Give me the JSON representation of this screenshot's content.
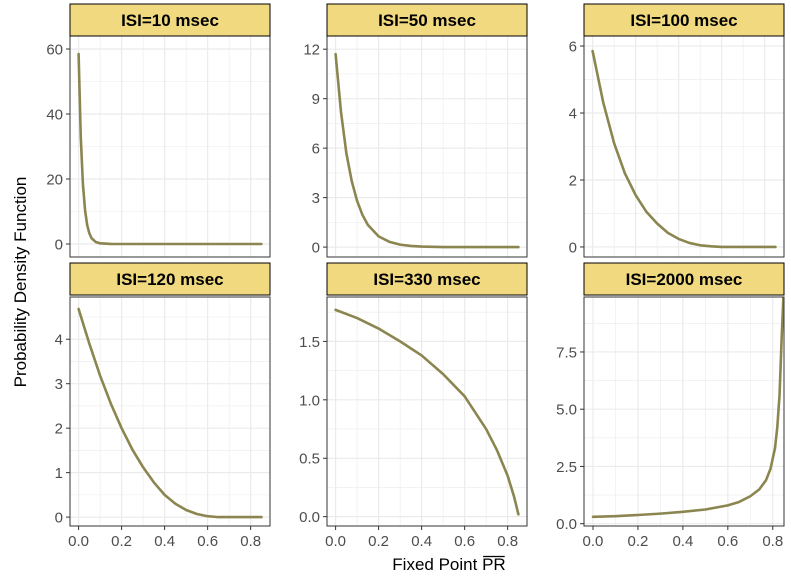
{
  "figure": {
    "ylabel": "Probability Density Function",
    "xlabel_prefix": "Fixed Point ",
    "xlabel_symbol": "PR"
  },
  "colors": {
    "curve": "#8B8550",
    "strip_fill": "#F0D97F",
    "strip_border": "#000000",
    "grid": "#EBEBEB",
    "panel_border": "#333333",
    "tick_text": "#4D4D4D"
  },
  "chart_data": [
    {
      "type": "line",
      "title": "ISI=10 msec",
      "x": [
        0.0,
        0.01,
        0.02,
        0.03,
        0.04,
        0.05,
        0.06,
        0.08,
        0.1,
        0.15,
        0.2,
        0.3,
        0.4,
        0.5,
        0.6,
        0.7,
        0.8,
        0.85
      ],
      "y": [
        58.5,
        33.0,
        18.5,
        10.4,
        5.8,
        3.3,
        1.8,
        0.6,
        0.2,
        0.02,
        0.0,
        0.0,
        0.0,
        0.0,
        0.0,
        0.0,
        0.0,
        0.0
      ],
      "xlim": [
        -0.04,
        0.89
      ],
      "ylim": [
        -4,
        64
      ],
      "xticks": [
        "0.0",
        "0.2",
        "0.4",
        "0.6",
        "0.8"
      ],
      "yticks": [
        "0",
        "20",
        "40",
        "60"
      ],
      "ytick_values": [
        0,
        20,
        40,
        60
      ],
      "show_xticks": false,
      "grid": true
    },
    {
      "type": "line",
      "title": "ISI=50 msec",
      "x": [
        0.0,
        0.025,
        0.05,
        0.075,
        0.1,
        0.125,
        0.15,
        0.2,
        0.25,
        0.3,
        0.35,
        0.4,
        0.5,
        0.6,
        0.7,
        0.8,
        0.85
      ],
      "y": [
        11.7,
        8.2,
        5.7,
        4.0,
        2.8,
        1.95,
        1.35,
        0.65,
        0.32,
        0.15,
        0.07,
        0.03,
        0.0,
        0.0,
        0.0,
        0.0,
        0.0
      ],
      "xlim": [
        -0.04,
        0.89
      ],
      "ylim": [
        -0.6,
        12.8
      ],
      "xticks": [
        "0.0",
        "0.2",
        "0.4",
        "0.6",
        "0.8"
      ],
      "yticks": [
        "0",
        "3",
        "6",
        "9",
        "12"
      ],
      "ytick_values": [
        0,
        3,
        6,
        9,
        12
      ],
      "show_xticks": false,
      "grid": true
    },
    {
      "type": "line",
      "title": "ISI=100 msec",
      "x": [
        0.0,
        0.05,
        0.1,
        0.15,
        0.2,
        0.25,
        0.3,
        0.35,
        0.4,
        0.45,
        0.5,
        0.55,
        0.6,
        0.7,
        0.8,
        0.85
      ],
      "y": [
        5.85,
        4.3,
        3.1,
        2.2,
        1.55,
        1.05,
        0.7,
        0.42,
        0.24,
        0.12,
        0.05,
        0.02,
        0.0,
        0.0,
        0.0,
        0.0
      ],
      "xlim": [
        -0.04,
        0.89
      ],
      "ylim": [
        -0.3,
        6.3
      ],
      "xticks": [
        "0.0",
        "0.2",
        "0.4",
        "0.6",
        "0.8"
      ],
      "yticks": [
        "0",
        "2",
        "4",
        "6"
      ],
      "ytick_values": [
        0,
        2,
        4,
        6
      ],
      "show_xticks": false,
      "grid": true
    },
    {
      "type": "line",
      "title": "ISI=120 msec",
      "x": [
        0.0,
        0.05,
        0.1,
        0.15,
        0.2,
        0.25,
        0.3,
        0.35,
        0.4,
        0.45,
        0.5,
        0.55,
        0.6,
        0.65,
        0.7,
        0.8,
        0.85
      ],
      "y": [
        4.68,
        3.9,
        3.18,
        2.55,
        2.0,
        1.52,
        1.12,
        0.78,
        0.5,
        0.3,
        0.16,
        0.07,
        0.02,
        0.0,
        0.0,
        0.0,
        0.0
      ],
      "xlim": [
        -0.04,
        0.89
      ],
      "ylim": [
        -0.2,
        4.95
      ],
      "xticks": [
        "0.0",
        "0.2",
        "0.4",
        "0.6",
        "0.8"
      ],
      "yticks": [
        "0",
        "1",
        "2",
        "3",
        "4"
      ],
      "ytick_values": [
        0,
        1,
        2,
        3,
        4
      ],
      "show_xticks": true,
      "grid": true
    },
    {
      "type": "line",
      "title": "ISI=330 msec",
      "x": [
        0.0,
        0.1,
        0.2,
        0.3,
        0.4,
        0.5,
        0.6,
        0.7,
        0.75,
        0.8,
        0.83,
        0.85
      ],
      "y": [
        1.77,
        1.7,
        1.61,
        1.5,
        1.38,
        1.22,
        1.03,
        0.75,
        0.57,
        0.35,
        0.17,
        0.02
      ],
      "xlim": [
        -0.04,
        0.89
      ],
      "ylim": [
        -0.08,
        1.88
      ],
      "xticks": [
        "0.0",
        "0.2",
        "0.4",
        "0.6",
        "0.8"
      ],
      "yticks": [
        "0.0",
        "0.5",
        "1.0",
        "1.5"
      ],
      "ytick_values": [
        0,
        0.5,
        1,
        1.5
      ],
      "show_xticks": true,
      "grid": true
    },
    {
      "type": "line",
      "title": "ISI=2000 msec",
      "x": [
        0.0,
        0.1,
        0.2,
        0.3,
        0.4,
        0.5,
        0.6,
        0.65,
        0.7,
        0.74,
        0.77,
        0.79,
        0.81,
        0.82,
        0.83,
        0.84,
        0.85
      ],
      "y": [
        0.3,
        0.33,
        0.38,
        0.44,
        0.52,
        0.62,
        0.8,
        0.95,
        1.2,
        1.5,
        1.9,
        2.4,
        3.3,
        4.2,
        5.6,
        8.2,
        10.5
      ],
      "xlim": [
        -0.04,
        0.85
      ],
      "ylim": [
        -0.1,
        9.9
      ],
      "xticks": [
        "0.0",
        "0.2",
        "0.4",
        "0.6",
        "0.8"
      ],
      "yticks": [
        "0.0",
        "2.5",
        "5.0",
        "7.5"
      ],
      "ytick_values": [
        0,
        2.5,
        5,
        7.5
      ],
      "show_xticks": true,
      "grid": true
    }
  ]
}
